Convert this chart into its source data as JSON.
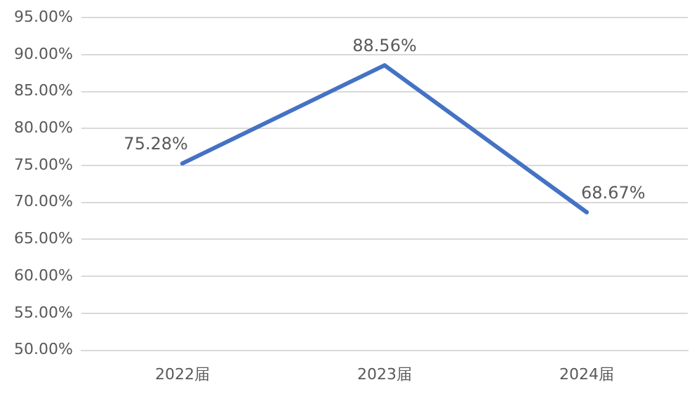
{
  "chart_data": {
    "type": "line",
    "categories": [
      "2022届",
      "2023届",
      "2024届"
    ],
    "series": [
      {
        "color": "#4472c4",
        "values": [
          75.28,
          88.56,
          68.67
        ],
        "value_labels": [
          "75.28%",
          "88.56%",
          "68.67%"
        ]
      }
    ],
    "ylim": [
      50,
      95
    ],
    "yticks": [
      {
        "value": 50,
        "label": "50.00%"
      },
      {
        "value": 55,
        "label": "55.00%"
      },
      {
        "value": 60,
        "label": "60.00%"
      },
      {
        "value": 65,
        "label": "65.00%"
      },
      {
        "value": 70,
        "label": "70.00%"
      },
      {
        "value": 75,
        "label": "75.00%"
      },
      {
        "value": 80,
        "label": "80.00%"
      },
      {
        "value": 85,
        "label": "85.00%"
      },
      {
        "value": 90,
        "label": "90.00%"
      },
      {
        "value": 95,
        "label": "95.00%"
      }
    ],
    "grid": "y",
    "legend": false,
    "marker": "none",
    "line_style": "solid"
  }
}
